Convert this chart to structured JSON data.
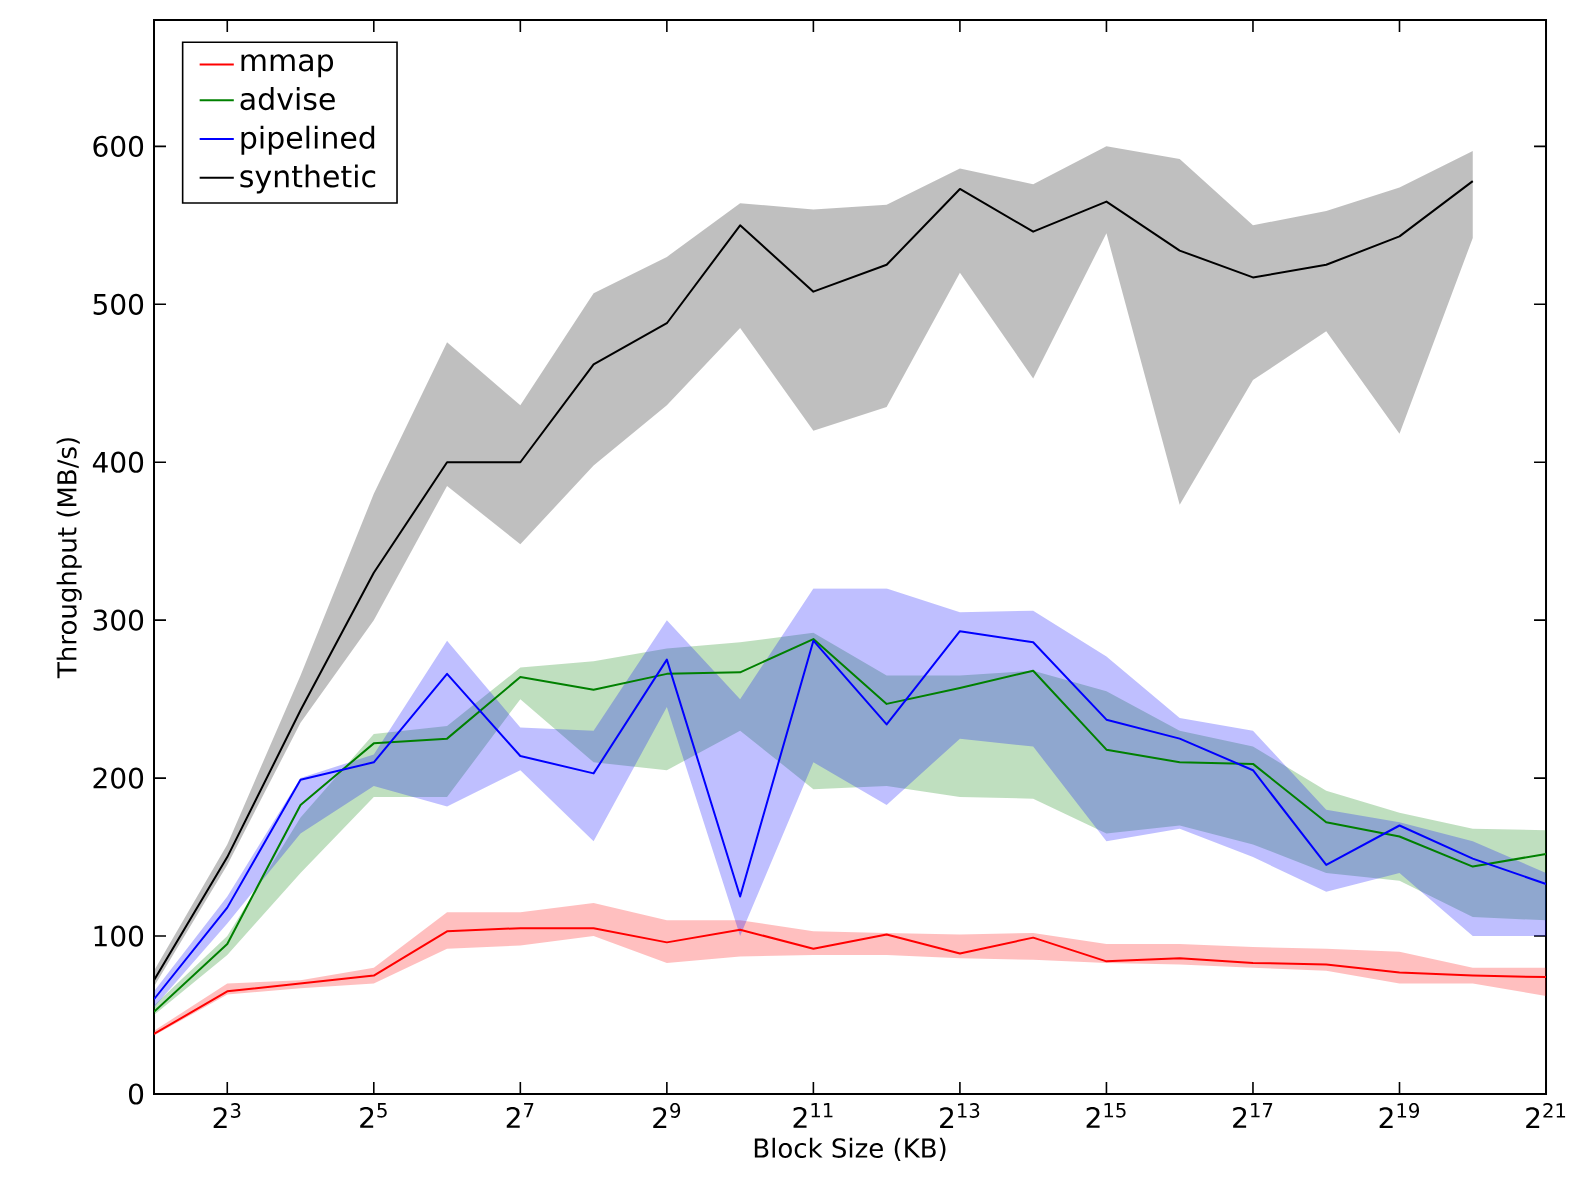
{
  "chart_data": {
    "type": "line",
    "xlabel": "Block Size (KB)",
    "ylabel": "Throughput (MB/s)",
    "log": "x",
    "legend": "top left",
    "grid": false,
    "marker": "none",
    "line_style": "solid",
    "x": [
      4,
      8,
      16,
      32,
      64,
      128,
      256,
      512,
      1024,
      2048,
      4096,
      8192,
      16384,
      32768,
      65536,
      131072,
      262144,
      524288,
      1048576,
      2097152
    ],
    "xlim": [
      4,
      2097152
    ],
    "xticks": [
      {
        "value": 8,
        "label": "2$^{3}$"
      },
      {
        "value": 32,
        "label": "2$^{5}$"
      },
      {
        "value": 128,
        "label": "2$^{7}$"
      },
      {
        "value": 512,
        "label": "2$^{9}$"
      },
      {
        "value": 2048,
        "label": "2$^{11}$"
      },
      {
        "value": 8192,
        "label": "2$^{13}$"
      },
      {
        "value": 32768,
        "label": "2$^{15}$"
      },
      {
        "value": 131072,
        "label": "2$^{17}$"
      },
      {
        "value": 524288,
        "label": "2$^{19}$"
      },
      {
        "value": 2097152,
        "label": "2$^{21}$"
      }
    ],
    "ylim": [
      0,
      680
    ],
    "yticks": [
      0,
      100,
      200,
      300,
      400,
      500,
      600
    ],
    "series": [
      {
        "name": "mmap",
        "color": "#ff0000",
        "values": [
          38,
          65,
          70,
          75,
          103,
          105,
          105,
          96,
          104,
          92,
          101,
          89,
          99,
          84,
          86,
          83,
          82,
          77,
          75,
          74
        ],
        "lower": [
          37,
          63,
          67,
          70,
          92,
          94,
          100,
          83,
          87,
          88,
          88,
          86,
          85,
          83,
          82,
          80,
          78,
          70,
          70,
          62
        ],
        "upper": [
          40,
          70,
          72,
          80,
          115,
          115,
          121,
          110,
          110,
          103,
          102,
          101,
          102,
          95,
          95,
          93,
          92,
          90,
          80,
          80
        ]
      },
      {
        "name": "advise",
        "color": "#008000",
        "values": [
          52,
          95,
          183,
          222,
          225,
          264,
          256,
          266,
          267,
          288,
          247,
          257,
          268,
          218,
          210,
          209,
          172,
          163,
          144,
          152
        ],
        "lower": [
          50,
          88,
          140,
          188,
          188,
          250,
          210,
          205,
          230,
          193,
          195,
          188,
          187,
          165,
          170,
          158,
          140,
          135,
          112,
          110
        ],
        "upper": [
          56,
          100,
          175,
          228,
          233,
          270,
          274,
          282,
          286,
          292,
          265,
          265,
          268,
          255,
          230,
          220,
          192,
          178,
          168,
          167
        ]
      },
      {
        "name": "pipelined",
        "color": "#0000ff",
        "values": [
          60,
          118,
          199,
          210,
          266,
          214,
          203,
          275,
          125,
          287,
          234,
          293,
          286,
          237,
          225,
          205,
          145,
          170,
          149,
          133
        ],
        "lower": [
          55,
          108,
          165,
          195,
          182,
          205,
          160,
          245,
          100,
          210,
          183,
          225,
          220,
          160,
          168,
          150,
          128,
          140,
          100,
          100
        ],
        "upper": [
          65,
          125,
          200,
          215,
          287,
          232,
          230,
          300,
          250,
          320,
          320,
          305,
          306,
          277,
          238,
          230,
          180,
          172,
          160,
          140
        ]
      },
      {
        "name": "synthetic",
        "color": "#000000",
        "values": [
          72,
          150,
          243,
          330,
          400,
          400,
          462,
          488,
          550,
          508,
          525,
          573,
          546,
          565,
          534,
          517,
          525,
          543,
          578,
          null
        ],
        "lower": [
          68,
          145,
          235,
          300,
          385,
          348,
          398,
          436,
          485,
          420,
          435,
          520,
          453,
          545,
          373,
          452,
          483,
          418,
          542,
          null
        ],
        "upper": [
          78,
          158,
          265,
          380,
          476,
          436,
          507,
          530,
          564,
          560,
          563,
          586,
          576,
          600,
          592,
          550,
          559,
          574,
          597,
          null
        ]
      }
    ]
  }
}
